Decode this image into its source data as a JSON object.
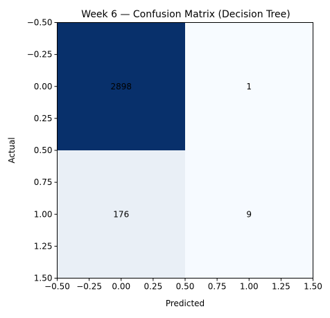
{
  "chart_data": {
    "type": "heatmap",
    "title": "Week 6 — Confusion Matrix (Decision Tree)",
    "xlabel": "Predicted",
    "ylabel": "Actual",
    "matrix": [
      [
        2898,
        1
      ],
      [
        176,
        9
      ]
    ],
    "xlim": [
      -0.5,
      1.5
    ],
    "ylim": [
      -0.5,
      1.5
    ],
    "y_axis_inverted": true,
    "xticks": [
      -0.5,
      -0.25,
      0.0,
      0.25,
      0.5,
      0.75,
      1.0,
      1.25,
      1.5
    ],
    "xtick_labels": [
      "−0.50",
      "−0.25",
      "0.00",
      "0.25",
      "0.50",
      "0.75",
      "1.00",
      "1.25",
      "1.50"
    ],
    "yticks": [
      -0.5,
      -0.25,
      0.0,
      0.25,
      0.5,
      0.75,
      1.0,
      1.25,
      1.5
    ],
    "ytick_labels": [
      "−0.50",
      "−0.25",
      "0.00",
      "0.25",
      "0.50",
      "0.75",
      "1.00",
      "1.25",
      "1.50"
    ],
    "colormap": "Blues",
    "colors": {
      "low": "#f7fbff",
      "high": "#08306b"
    },
    "grid": false,
    "legend": "none"
  }
}
